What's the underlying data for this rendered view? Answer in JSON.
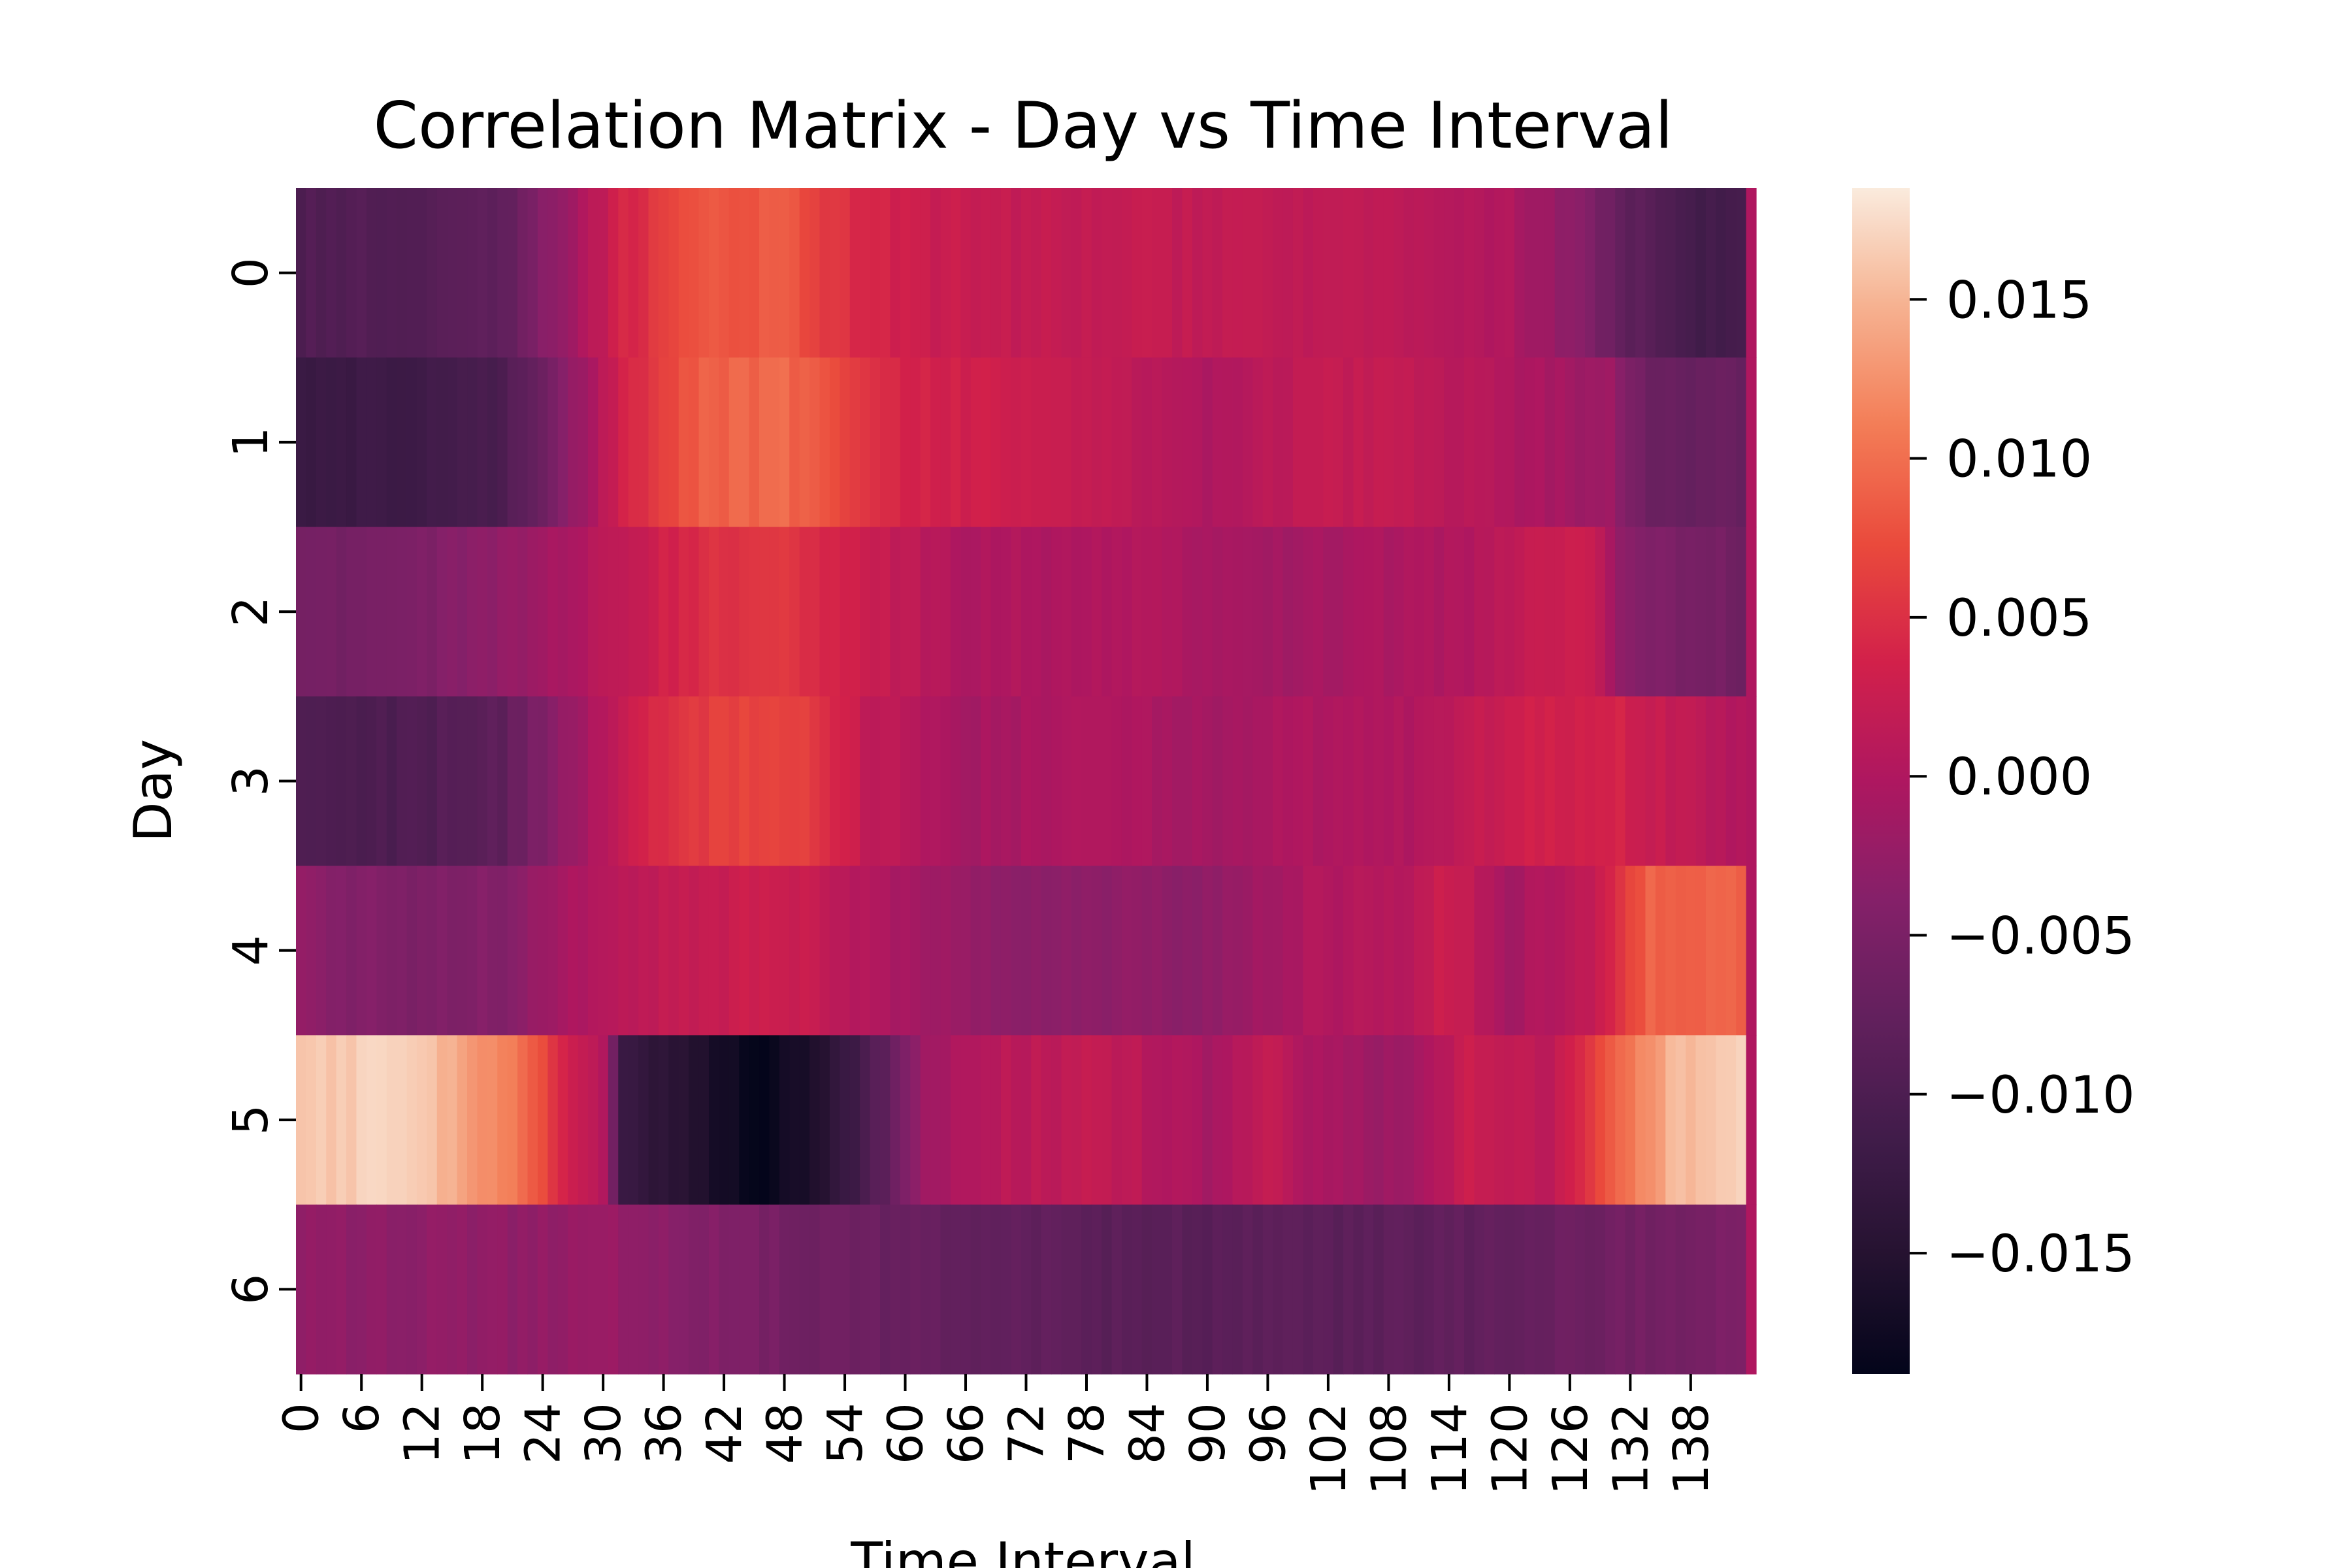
{
  "chart_data": {
    "type": "heatmap",
    "title": "Correlation Matrix - Day vs Time Interval",
    "xlabel": "Time Interval",
    "ylabel": "Day",
    "rows": [
      "0",
      "1",
      "2",
      "3",
      "4",
      "5",
      "6"
    ],
    "x_count": 144,
    "x_tick_labels": [
      "0",
      "6",
      "12",
      "18",
      "24",
      "30",
      "36",
      "42",
      "48",
      "54",
      "60",
      "66",
      "72",
      "78",
      "84",
      "90",
      "96",
      "102",
      "108",
      "114",
      "120",
      "126",
      "132",
      "138"
    ],
    "colorbar": {
      "range": [
        -0.0188,
        0.0185
      ],
      "ticks": [
        "0.015",
        "0.010",
        "0.005",
        "0.000",
        "−0.005",
        "−0.010",
        "−0.015"
      ],
      "tick_values": [
        0.015,
        0.01,
        0.005,
        0.0,
        -0.005,
        -0.01,
        -0.015
      ],
      "colormap": "rocket"
    },
    "last_column_value": 0.0,
    "row_profiles": [
      [
        [
          0,
          -0.0095
        ],
        [
          12,
          -0.009
        ],
        [
          20,
          -0.008
        ],
        [
          26,
          -0.002
        ],
        [
          32,
          0.004
        ],
        [
          40,
          0.008
        ],
        [
          48,
          0.0085
        ],
        [
          54,
          0.005
        ],
        [
          60,
          0.003
        ],
        [
          70,
          0.002
        ],
        [
          80,
          0.002
        ],
        [
          90,
          0.002
        ],
        [
          100,
          0.0015
        ],
        [
          110,
          0.001
        ],
        [
          120,
          0.0
        ],
        [
          126,
          -0.003
        ],
        [
          132,
          -0.008
        ],
        [
          138,
          -0.011
        ],
        [
          143,
          -0.011
        ]
      ],
      [
        [
          0,
          -0.012
        ],
        [
          10,
          -0.012
        ],
        [
          20,
          -0.01
        ],
        [
          26,
          -0.004
        ],
        [
          32,
          0.004
        ],
        [
          40,
          0.009
        ],
        [
          48,
          0.0095
        ],
        [
          54,
          0.007
        ],
        [
          60,
          0.004
        ],
        [
          70,
          0.003
        ],
        [
          80,
          0.002
        ],
        [
          90,
          0.0
        ],
        [
          100,
          0.002
        ],
        [
          110,
          0.002
        ],
        [
          120,
          0.0
        ],
        [
          130,
          -0.002
        ],
        [
          134,
          -0.007
        ],
        [
          143,
          -0.007
        ]
      ],
      [
        [
          0,
          -0.006
        ],
        [
          10,
          -0.005
        ],
        [
          20,
          -0.003
        ],
        [
          30,
          0.001
        ],
        [
          40,
          0.005
        ],
        [
          48,
          0.0055
        ],
        [
          55,
          0.003
        ],
        [
          65,
          0.0
        ],
        [
          75,
          0.0
        ],
        [
          85,
          0.0
        ],
        [
          95,
          -0.0015
        ],
        [
          105,
          -0.0005
        ],
        [
          115,
          0.0
        ],
        [
          122,
          0.002
        ],
        [
          128,
          0.003
        ],
        [
          132,
          -0.004
        ],
        [
          143,
          -0.006
        ]
      ],
      [
        [
          0,
          -0.01
        ],
        [
          10,
          -0.01
        ],
        [
          20,
          -0.008
        ],
        [
          28,
          -0.001
        ],
        [
          34,
          0.004
        ],
        [
          44,
          0.007
        ],
        [
          50,
          0.006
        ],
        [
          56,
          0.002
        ],
        [
          66,
          -0.001
        ],
        [
          80,
          0.0
        ],
        [
          90,
          -0.001
        ],
        [
          100,
          0.0
        ],
        [
          110,
          0.0
        ],
        [
          120,
          0.003
        ],
        [
          130,
          0.004
        ],
        [
          136,
          0.002
        ],
        [
          143,
          0.0
        ]
      ],
      [
        [
          0,
          -0.003
        ],
        [
          10,
          -0.005
        ],
        [
          20,
          -0.004
        ],
        [
          28,
          0.0
        ],
        [
          36,
          0.002
        ],
        [
          46,
          0.003
        ],
        [
          52,
          0.002
        ],
        [
          60,
          -0.001
        ],
        [
          70,
          -0.003
        ],
        [
          80,
          -0.003
        ],
        [
          90,
          -0.003
        ],
        [
          100,
          0.0
        ],
        [
          110,
          0.001
        ],
        [
          114,
          0.003
        ],
        [
          120,
          -0.001
        ],
        [
          128,
          0.002
        ],
        [
          134,
          0.009
        ],
        [
          143,
          0.009
        ]
      ],
      [
        [
          0,
          0.016
        ],
        [
          10,
          0.017
        ],
        [
          16,
          0.014
        ],
        [
          22,
          0.01
        ],
        [
          26,
          0.004
        ],
        [
          30,
          0.0
        ],
        [
          32,
          -0.012
        ],
        [
          40,
          -0.016
        ],
        [
          46,
          -0.0185
        ],
        [
          52,
          -0.015
        ],
        [
          58,
          -0.008
        ],
        [
          62,
          -0.001
        ],
        [
          70,
          0.001
        ],
        [
          80,
          0.002
        ],
        [
          90,
          -0.001
        ],
        [
          96,
          0.002
        ],
        [
          102,
          -0.001
        ],
        [
          110,
          -0.002
        ],
        [
          116,
          0.003
        ],
        [
          124,
          0.001
        ],
        [
          130,
          0.008
        ],
        [
          136,
          0.015
        ],
        [
          143,
          0.017
        ]
      ],
      [
        [
          0,
          -0.003
        ],
        [
          20,
          -0.003
        ],
        [
          30,
          -0.002
        ],
        [
          40,
          -0.004
        ],
        [
          50,
          -0.006
        ],
        [
          60,
          -0.007
        ],
        [
          70,
          -0.0075
        ],
        [
          80,
          -0.0085
        ],
        [
          90,
          -0.0085
        ],
        [
          100,
          -0.0085
        ],
        [
          110,
          -0.008
        ],
        [
          120,
          -0.0075
        ],
        [
          130,
          -0.006
        ],
        [
          143,
          -0.005
        ]
      ]
    ]
  }
}
